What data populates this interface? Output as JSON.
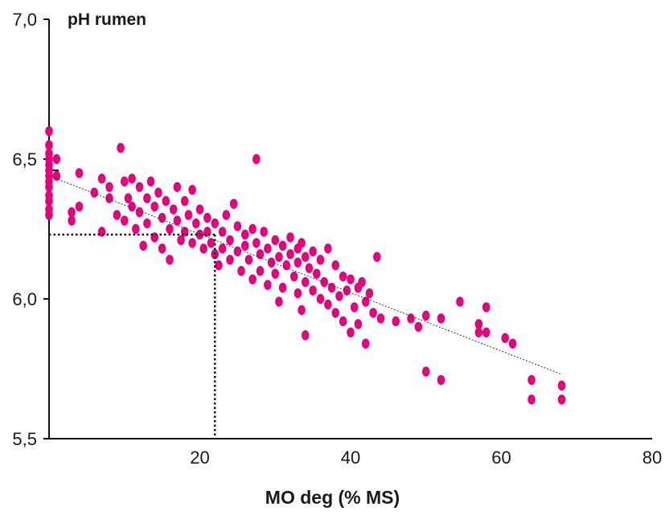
{
  "chart_data": {
    "type": "scatter",
    "title": "pH rumen",
    "xlabel": "MO deg (% MS)",
    "ylabel": "pH rumen",
    "xlim": [
      0,
      80
    ],
    "ylim": [
      5.5,
      7.0
    ],
    "x_ticks": [
      20,
      40,
      60,
      80
    ],
    "x_tick_labels": [
      "20",
      "40",
      "60",
      "80"
    ],
    "y_ticks": [
      5.5,
      6.0,
      6.5,
      7.0
    ],
    "y_tick_labels": [
      "5,5",
      "6,0",
      "6,5",
      "7,0"
    ],
    "grid": false,
    "point_color": "#e6007e",
    "trend_line": {
      "x": [
        0,
        68
      ],
      "y": [
        6.44,
        5.73
      ]
    },
    "reference": {
      "x": 22,
      "y": 6.23
    },
    "series": [
      {
        "values": [
          [
            0,
            6.6
          ],
          [
            0,
            6.55
          ],
          [
            0,
            6.52
          ],
          [
            0,
            6.5
          ],
          [
            0,
            6.48
          ],
          [
            0,
            6.46
          ],
          [
            0,
            6.44
          ],
          [
            0,
            6.42
          ],
          [
            0,
            6.4
          ],
          [
            0,
            6.37
          ],
          [
            0,
            6.35
          ],
          [
            0,
            6.32
          ],
          [
            0,
            6.3
          ],
          [
            1,
            6.5
          ],
          [
            1,
            6.44
          ],
          [
            3,
            6.31
          ],
          [
            3,
            6.28
          ],
          [
            4,
            6.45
          ],
          [
            4,
            6.33
          ],
          [
            6,
            6.38
          ],
          [
            7,
            6.43
          ],
          [
            7,
            6.24
          ],
          [
            8,
            6.4
          ],
          [
            8,
            6.36
          ],
          [
            9,
            6.3
          ],
          [
            9.5,
            6.54
          ],
          [
            10,
            6.42
          ],
          [
            10,
            6.28
          ],
          [
            10.5,
            6.36
          ],
          [
            11,
            6.43
          ],
          [
            11,
            6.33
          ],
          [
            11.5,
            6.25
          ],
          [
            12,
            6.4
          ],
          [
            12,
            6.31
          ],
          [
            12.5,
            6.19
          ],
          [
            13,
            6.36
          ],
          [
            13,
            6.27
          ],
          [
            13.5,
            6.42
          ],
          [
            14,
            6.33
          ],
          [
            14,
            6.22
          ],
          [
            14.5,
            6.38
          ],
          [
            15,
            6.29
          ],
          [
            15,
            6.18
          ],
          [
            15.5,
            6.35
          ],
          [
            16,
            6.25
          ],
          [
            16,
            6.14
          ],
          [
            16.5,
            6.32
          ],
          [
            17,
            6.4
          ],
          [
            17,
            6.28
          ],
          [
            17.5,
            6.21
          ],
          [
            18,
            6.35
          ],
          [
            18,
            6.24
          ],
          [
            18.5,
            6.3
          ],
          [
            19,
            6.39
          ],
          [
            19,
            6.2
          ],
          [
            19.5,
            6.27
          ],
          [
            20,
            6.32
          ],
          [
            20,
            6.23
          ],
          [
            20.5,
            6.18
          ],
          [
            21,
            6.29
          ],
          [
            21,
            6.24
          ],
          [
            21.5,
            6.2
          ],
          [
            22,
            6.27
          ],
          [
            22,
            6.16
          ],
          [
            22.5,
            6.12
          ],
          [
            23,
            6.24
          ],
          [
            23,
            6.18
          ],
          [
            23.5,
            6.3
          ],
          [
            24,
            6.21
          ],
          [
            24,
            6.14
          ],
          [
            24.5,
            6.34
          ],
          [
            25,
            6.26
          ],
          [
            25,
            6.17
          ],
          [
            25.5,
            6.1
          ],
          [
            26,
            6.23
          ],
          [
            26,
            6.19
          ],
          [
            26.5,
            6.14
          ],
          [
            27,
            6.25
          ],
          [
            27,
            6.07
          ],
          [
            27.5,
            6.5
          ],
          [
            27.5,
            6.2
          ],
          [
            28,
            6.16
          ],
          [
            28,
            6.1
          ],
          [
            28.5,
            6.24
          ],
          [
            29,
            6.18
          ],
          [
            29,
            6.05
          ],
          [
            29.5,
            6.13
          ],
          [
            30,
            6.21
          ],
          [
            30,
            6.09
          ],
          [
            30.5,
            6.15
          ],
          [
            30.5,
            5.99
          ],
          [
            31,
            6.19
          ],
          [
            31,
            6.04
          ],
          [
            31.5,
            6.12
          ],
          [
            32,
            6.22
          ],
          [
            32,
            6.16
          ],
          [
            32.5,
            6.08
          ],
          [
            33,
            6.18
          ],
          [
            33,
            6.13
          ],
          [
            33,
            6.02
          ],
          [
            33.5,
            6.2
          ],
          [
            33.5,
            5.96
          ],
          [
            34,
            6.15
          ],
          [
            34,
            6.06
          ],
          [
            34,
            5.87
          ],
          [
            34.5,
            6.11
          ],
          [
            35,
            6.17
          ],
          [
            35,
            6.03
          ],
          [
            35.5,
            6.09
          ],
          [
            36,
            6.14
          ],
          [
            36,
            6.0
          ],
          [
            36.5,
            6.06
          ],
          [
            37,
            6.18
          ],
          [
            37,
            5.98
          ],
          [
            37.5,
            6.04
          ],
          [
            38,
            6.12
          ],
          [
            38,
            5.95
          ],
          [
            38.5,
            6.01
          ],
          [
            39,
            6.08
          ],
          [
            39,
            5.92
          ],
          [
            39.5,
            6.03
          ],
          [
            40,
            6.07
          ],
          [
            40,
            5.88
          ],
          [
            40.5,
            5.97
          ],
          [
            41,
            6.04
          ],
          [
            41,
            5.91
          ],
          [
            41.5,
            6.06
          ],
          [
            42,
            5.99
          ],
          [
            42,
            5.84
          ],
          [
            42.5,
            6.02
          ],
          [
            43,
            5.95
          ],
          [
            43.5,
            6.15
          ],
          [
            44,
            5.93
          ],
          [
            46,
            5.92
          ],
          [
            48,
            5.93
          ],
          [
            49,
            5.9
          ],
          [
            50,
            5.94
          ],
          [
            50,
            5.74
          ],
          [
            52,
            5.93
          ],
          [
            52,
            5.71
          ],
          [
            54.5,
            5.99
          ],
          [
            57,
            5.91
          ],
          [
            57,
            5.88
          ],
          [
            58,
            5.97
          ],
          [
            58,
            5.88
          ],
          [
            60.5,
            5.86
          ],
          [
            61.5,
            5.84
          ],
          [
            64,
            5.71
          ],
          [
            64,
            5.64
          ],
          [
            68,
            5.69
          ],
          [
            68,
            5.64
          ]
        ]
      }
    ]
  }
}
